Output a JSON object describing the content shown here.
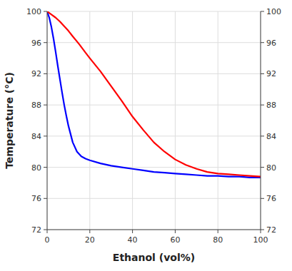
{
  "chart_data": {
    "type": "line",
    "xlabel": "Ethanol (vol%)",
    "ylabel": "Temperature (°C)",
    "xlim": [
      0,
      100
    ],
    "ylim": [
      72,
      100
    ],
    "xticks": [
      0,
      20,
      40,
      60,
      80,
      100
    ],
    "yticks": [
      72,
      76,
      80,
      84,
      88,
      92,
      96,
      100
    ],
    "y2lim": [
      72,
      100
    ],
    "y2ticks": [
      72,
      76,
      80,
      84,
      88,
      92,
      96,
      100
    ],
    "grid": true,
    "series": [
      {
        "color": "#0000FF",
        "x": [
          0,
          1,
          2,
          3,
          4,
          5,
          6,
          7,
          8,
          9,
          10,
          12,
          14,
          16,
          18,
          20,
          25,
          30,
          35,
          40,
          45,
          50,
          55,
          60,
          65,
          70,
          75,
          80,
          85,
          90,
          95,
          100
        ],
        "values": [
          100,
          99.2,
          98.0,
          96.5,
          94.8,
          93.0,
          91.3,
          89.6,
          88.0,
          86.6,
          85.3,
          83.2,
          82.0,
          81.4,
          81.1,
          80.9,
          80.5,
          80.2,
          80.0,
          79.8,
          79.6,
          79.4,
          79.3,
          79.2,
          79.1,
          79.0,
          78.9,
          78.9,
          78.8,
          78.8,
          78.7,
          78.7
        ]
      },
      {
        "color": "#FF0000",
        "x": [
          0,
          2,
          4,
          6,
          8,
          10,
          12,
          15,
          18,
          20,
          25,
          30,
          35,
          40,
          45,
          50,
          55,
          60,
          65,
          70,
          75,
          80,
          85,
          90,
          95,
          100
        ],
        "values": [
          100,
          99.6,
          99.2,
          98.7,
          98.1,
          97.5,
          96.8,
          95.8,
          94.7,
          94.0,
          92.3,
          90.4,
          88.5,
          86.5,
          84.8,
          83.2,
          82.0,
          81.0,
          80.3,
          79.8,
          79.4,
          79.2,
          79.1,
          79.0,
          78.9,
          78.8
        ]
      }
    ]
  }
}
